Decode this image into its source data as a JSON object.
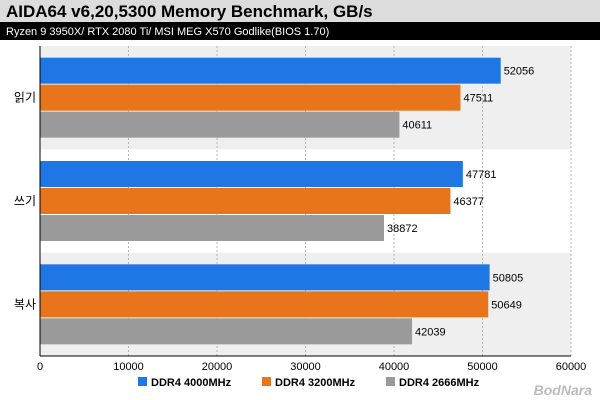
{
  "chart_data": {
    "type": "bar",
    "orientation": "horizontal",
    "title": "AIDA64 v6,20,5300 Memory Benchmark, GB/s",
    "subtitle": "Ryzen 9 3950X/ RTX 2080 Ti/ MSI MEG X570 Godlike(BIOS 1.70)",
    "categories": [
      "읽기",
      "쓰기",
      "복사"
    ],
    "series": [
      {
        "name": "DDR4 4000MHz",
        "color": "#1f77e6",
        "values": [
          52056,
          47781,
          50805
        ]
      },
      {
        "name": "DDR4 3200MHz",
        "color": "#e8741c",
        "values": [
          47511,
          46377,
          50649
        ]
      },
      {
        "name": "DDR4 2666MHz",
        "color": "#9a9a9a",
        "values": [
          40611,
          38872,
          42039
        ]
      }
    ],
    "xlim": [
      0,
      60000
    ],
    "xticks": [
      0,
      10000,
      20000,
      30000,
      40000,
      50000,
      60000
    ],
    "grid": true,
    "legend_position": "bottom",
    "watermark": "BodNara"
  }
}
